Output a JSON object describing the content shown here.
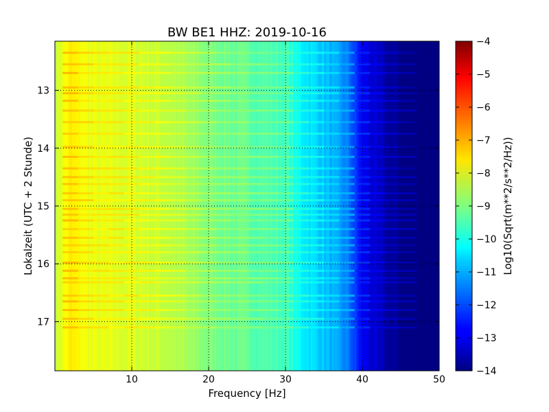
{
  "chart_data": {
    "type": "heatmap",
    "title": "BW BE1 HHZ: 2019-10-16",
    "xlabel": "Frequency [Hz]",
    "ylabel": "Lokalzeit (UTC + 2 Stunde)",
    "xlim": [
      0,
      50
    ],
    "ylim": [
      12.15,
      17.85
    ],
    "y_inverted": true,
    "x_ticks": [
      "10",
      "20",
      "30",
      "40",
      "50"
    ],
    "x_tick_values": [
      10,
      20,
      30,
      40,
      50
    ],
    "y_ticks": [
      "13",
      "14",
      "15",
      "16",
      "17"
    ],
    "y_tick_values": [
      13,
      14,
      15,
      16,
      17
    ],
    "grid": true,
    "colorbar": {
      "label": "Log10(Sqrt(m**2/s**2/Hz))",
      "range": [
        -14,
        -4
      ],
      "colormap": "jet",
      "ticks": [
        "−14",
        "−13",
        "−12",
        "−11",
        "−10",
        "−9",
        "−8",
        "−7",
        "−6",
        "−5",
        "−4"
      ],
      "tick_values": [
        -14,
        -13,
        -12,
        -11,
        -10,
        -9,
        -8,
        -7,
        -6,
        -5,
        -4
      ]
    },
    "spectral_profile": {
      "frequency_hz": [
        0,
        2,
        5,
        10,
        15,
        20,
        25,
        30,
        32,
        35,
        38,
        40,
        42,
        44,
        46,
        50
      ],
      "log10_amplitude": [
        -8.3,
        -7.6,
        -8.0,
        -8.1,
        -8.4,
        -9.0,
        -9.3,
        -9.6,
        -10.3,
        -10.8,
        -11.5,
        -12.8,
        -13.4,
        -13.8,
        -14.0,
        -14.0
      ]
    },
    "bright_bands_hours": [
      12.35,
      12.55,
      12.7,
      12.95,
      13.05,
      13.18,
      13.35,
      13.55,
      13.75,
      13.98,
      14.15,
      14.35,
      14.5,
      14.62,
      14.78,
      14.9,
      15.05,
      15.15,
      15.25,
      15.4,
      15.55,
      15.68,
      15.8,
      15.98,
      16.12,
      16.25,
      16.32,
      16.55,
      16.65,
      16.8,
      16.95,
      17.1
    ]
  }
}
